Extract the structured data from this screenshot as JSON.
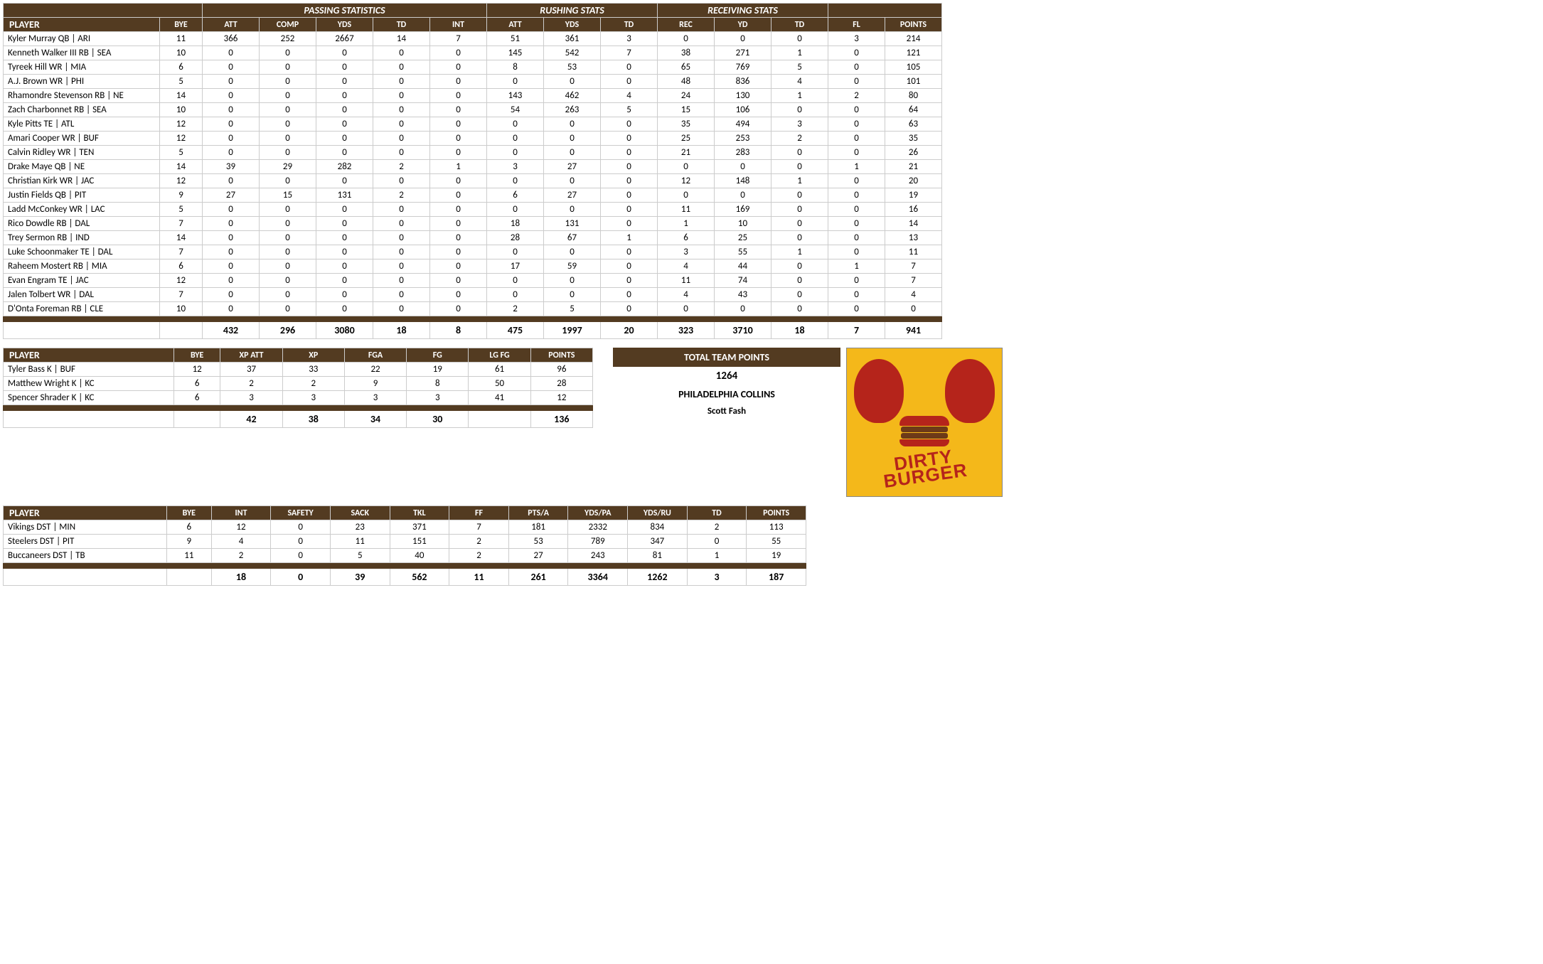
{
  "colors": {
    "header_bg": "#533b21",
    "header_fg": "#ffffff",
    "row_bg": "#ffffff",
    "border": "#cccccc"
  },
  "main": {
    "groups": [
      "",
      "",
      "PASSING STATISTICS",
      "RUSHING STATS",
      "RECEIVING STATS",
      "",
      ""
    ],
    "cols": [
      "PLAYER",
      "BYE",
      "ATT",
      "COMP",
      "YDS",
      "TD",
      "INT",
      "ATT",
      "YDS",
      "TD",
      "REC",
      "YD",
      "TD",
      "FL",
      "POINTS"
    ],
    "rows": [
      [
        "Kyler Murray QB | ARI",
        "11",
        "366",
        "252",
        "2667",
        "14",
        "7",
        "51",
        "361",
        "3",
        "0",
        "0",
        "0",
        "3",
        "214"
      ],
      [
        "Kenneth Walker III RB | SEA",
        "10",
        "0",
        "0",
        "0",
        "0",
        "0",
        "145",
        "542",
        "7",
        "38",
        "271",
        "1",
        "0",
        "121"
      ],
      [
        "Tyreek Hill WR | MIA",
        "6",
        "0",
        "0",
        "0",
        "0",
        "0",
        "8",
        "53",
        "0",
        "65",
        "769",
        "5",
        "0",
        "105"
      ],
      [
        "A.J. Brown WR | PHI",
        "5",
        "0",
        "0",
        "0",
        "0",
        "0",
        "0",
        "0",
        "0",
        "48",
        "836",
        "4",
        "0",
        "101"
      ],
      [
        "Rhamondre Stevenson RB | NE",
        "14",
        "0",
        "0",
        "0",
        "0",
        "0",
        "143",
        "462",
        "4",
        "24",
        "130",
        "1",
        "2",
        "80"
      ],
      [
        "Zach Charbonnet RB | SEA",
        "10",
        "0",
        "0",
        "0",
        "0",
        "0",
        "54",
        "263",
        "5",
        "15",
        "106",
        "0",
        "0",
        "64"
      ],
      [
        "Kyle Pitts TE | ATL",
        "12",
        "0",
        "0",
        "0",
        "0",
        "0",
        "0",
        "0",
        "0",
        "35",
        "494",
        "3",
        "0",
        "63"
      ],
      [
        "Amari Cooper WR | BUF",
        "12",
        "0",
        "0",
        "0",
        "0",
        "0",
        "0",
        "0",
        "0",
        "25",
        "253",
        "2",
        "0",
        "35"
      ],
      [
        "Calvin Ridley WR | TEN",
        "5",
        "0",
        "0",
        "0",
        "0",
        "0",
        "0",
        "0",
        "0",
        "21",
        "283",
        "0",
        "0",
        "26"
      ],
      [
        "Drake Maye QB | NE",
        "14",
        "39",
        "29",
        "282",
        "2",
        "1",
        "3",
        "27",
        "0",
        "0",
        "0",
        "0",
        "1",
        "21"
      ],
      [
        "Christian Kirk WR | JAC",
        "12",
        "0",
        "0",
        "0",
        "0",
        "0",
        "0",
        "0",
        "0",
        "12",
        "148",
        "1",
        "0",
        "20"
      ],
      [
        "Justin Fields QB | PIT",
        "9",
        "27",
        "15",
        "131",
        "2",
        "0",
        "6",
        "27",
        "0",
        "0",
        "0",
        "0",
        "0",
        "19"
      ],
      [
        "Ladd McConkey WR | LAC",
        "5",
        "0",
        "0",
        "0",
        "0",
        "0",
        "0",
        "0",
        "0",
        "11",
        "169",
        "0",
        "0",
        "16"
      ],
      [
        "Rico Dowdle RB | DAL",
        "7",
        "0",
        "0",
        "0",
        "0",
        "0",
        "18",
        "131",
        "0",
        "1",
        "10",
        "0",
        "0",
        "14"
      ],
      [
        "Trey Sermon RB | IND",
        "14",
        "0",
        "0",
        "0",
        "0",
        "0",
        "28",
        "67",
        "1",
        "6",
        "25",
        "0",
        "0",
        "13"
      ],
      [
        "Luke Schoonmaker TE | DAL",
        "7",
        "0",
        "0",
        "0",
        "0",
        "0",
        "0",
        "0",
        "0",
        "3",
        "55",
        "1",
        "0",
        "11"
      ],
      [
        "Raheem Mostert RB | MIA",
        "6",
        "0",
        "0",
        "0",
        "0",
        "0",
        "17",
        "59",
        "0",
        "4",
        "44",
        "0",
        "1",
        "7"
      ],
      [
        "Evan Engram TE | JAC",
        "12",
        "0",
        "0",
        "0",
        "0",
        "0",
        "0",
        "0",
        "0",
        "11",
        "74",
        "0",
        "0",
        "7"
      ],
      [
        "Jalen Tolbert WR | DAL",
        "7",
        "0",
        "0",
        "0",
        "0",
        "0",
        "0",
        "0",
        "0",
        "4",
        "43",
        "0",
        "0",
        "4"
      ],
      [
        "D'Onta Foreman RB | CLE",
        "10",
        "0",
        "0",
        "0",
        "0",
        "0",
        "2",
        "5",
        "0",
        "0",
        "0",
        "0",
        "0",
        "0"
      ]
    ],
    "totals": [
      "",
      "",
      "432",
      "296",
      "3080",
      "18",
      "8",
      "475",
      "1997",
      "20",
      "323",
      "3710",
      "18",
      "7",
      "941"
    ]
  },
  "kickers": {
    "cols": [
      "PLAYER",
      "BYE",
      "XP ATT",
      "XP",
      "FGA",
      "FG",
      "LG FG",
      "POINTS"
    ],
    "rows": [
      [
        "Tyler Bass K | BUF",
        "12",
        "37",
        "33",
        "22",
        "19",
        "61",
        "96"
      ],
      [
        "Matthew Wright K | KC",
        "6",
        "2",
        "2",
        "9",
        "8",
        "50",
        "28"
      ],
      [
        "Spencer Shrader K | KC",
        "6",
        "3",
        "3",
        "3",
        "3",
        "41",
        "12"
      ]
    ],
    "totals": [
      "",
      "",
      "42",
      "38",
      "34",
      "30",
      "",
      "136"
    ]
  },
  "defense": {
    "cols": [
      "PLAYER",
      "BYE",
      "INT",
      "SAFETY",
      "SACK",
      "TKL",
      "FF",
      "PTS/A",
      "YDS/PA",
      "YDS/RU",
      "TD",
      "POINTS"
    ],
    "rows": [
      [
        "Vikings DST | MIN",
        "6",
        "12",
        "0",
        "23",
        "371",
        "7",
        "181",
        "2332",
        "834",
        "2",
        "113"
      ],
      [
        "Steelers DST | PIT",
        "9",
        "4",
        "0",
        "11",
        "151",
        "2",
        "53",
        "789",
        "347",
        "0",
        "55"
      ],
      [
        "Buccaneers DST | TB",
        "11",
        "2",
        "0",
        "5",
        "40",
        "2",
        "27",
        "243",
        "81",
        "1",
        "19"
      ]
    ],
    "totals": [
      "",
      "",
      "18",
      "0",
      "39",
      "562",
      "11",
      "261",
      "3364",
      "1262",
      "3",
      "187"
    ]
  },
  "team": {
    "header": "TOTAL TEAM POINTS",
    "points": "1264",
    "name": "PHILADELPHIA COLLINS",
    "owner": "Scott Fash",
    "logo_top": "DIRTY",
    "logo_bottom": "BURGER"
  }
}
